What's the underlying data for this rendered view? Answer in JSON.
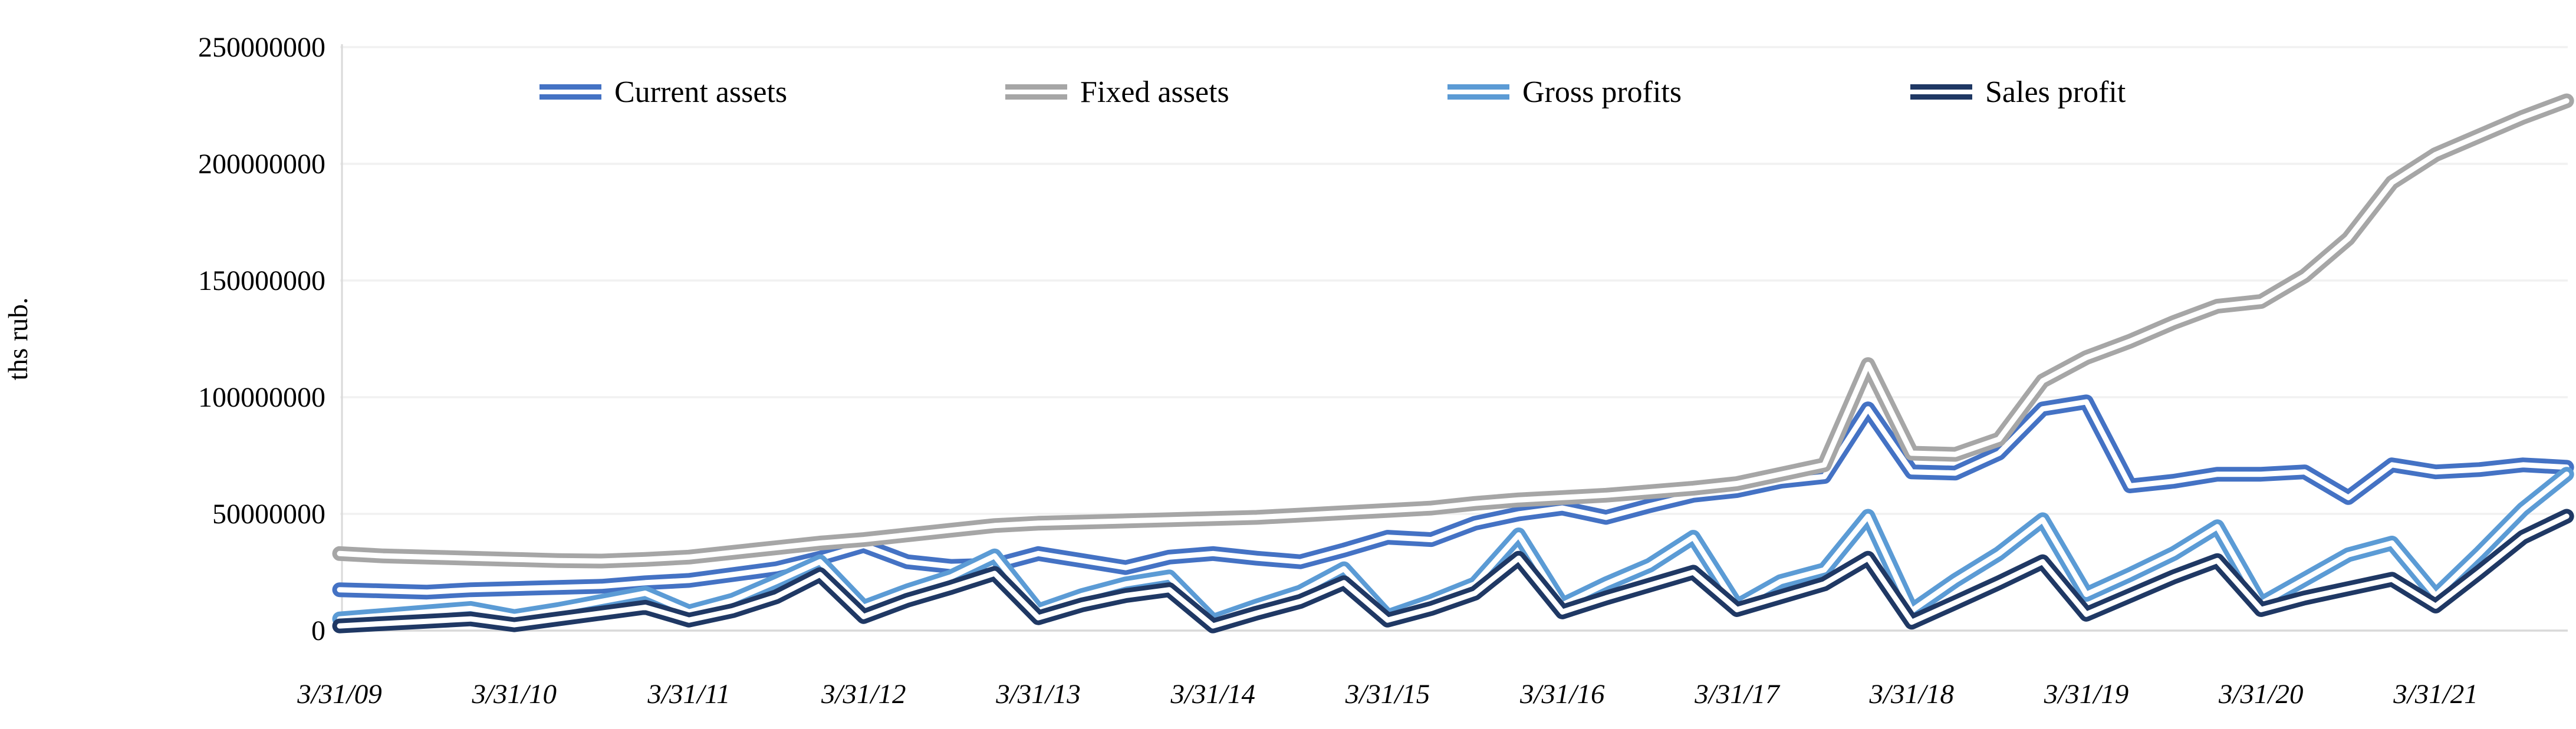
{
  "chart_data": {
    "type": "line",
    "title": "",
    "ylabel": "ths rub.",
    "xlabel": "",
    "ylim": [
      0,
      250000000
    ],
    "grid": "horizontal",
    "legend_position": "top",
    "y_ticks": [
      0,
      50000000,
      100000000,
      150000000,
      200000000,
      250000000
    ],
    "y_tick_labels": [
      "0",
      "50000000",
      "100000000",
      "150000000",
      "200000000",
      "250000000"
    ],
    "x_tick_labels": [
      "3/31/09",
      "3/31/10",
      "3/31/11",
      "3/31/12",
      "3/31/13",
      "3/31/14",
      "3/31/15",
      "3/31/16",
      "3/31/17",
      "3/31/18",
      "3/31/19",
      "3/31/20",
      "3/31/21"
    ],
    "categories": [
      "3/31/09",
      "6/30/09",
      "9/30/09",
      "12/31/09",
      "3/31/10",
      "6/30/10",
      "9/30/10",
      "12/31/10",
      "3/31/11",
      "6/30/11",
      "9/30/11",
      "12/31/11",
      "3/31/12",
      "6/30/12",
      "9/30/12",
      "12/31/12",
      "3/31/13",
      "6/30/13",
      "9/30/13",
      "12/31/13",
      "3/31/14",
      "6/30/14",
      "9/30/14",
      "12/31/14",
      "3/31/15",
      "6/30/15",
      "9/30/15",
      "12/31/15",
      "3/31/16",
      "6/30/16",
      "9/30/16",
      "12/31/16",
      "3/31/17",
      "6/30/17",
      "9/30/17",
      "12/31/17",
      "3/31/18",
      "6/30/18",
      "9/30/18",
      "12/31/18",
      "3/31/19",
      "6/30/19",
      "9/30/19",
      "12/31/19",
      "3/31/20",
      "6/30/20",
      "9/30/20",
      "12/31/20",
      "3/31/21",
      "6/30/21",
      "9/30/21",
      "12/31/21"
    ],
    "series": [
      {
        "name": "Current assets",
        "color": "#4472C4",
        "values": [
          17500000,
          17000000,
          16500000,
          17500000,
          18000000,
          18500000,
          19000000,
          20500000,
          21500000,
          24000000,
          26500000,
          31000000,
          36500000,
          29500000,
          27500000,
          28000000,
          33000000,
          30000000,
          27000000,
          31500000,
          33000000,
          31000000,
          29500000,
          34500000,
          40000000,
          39000000,
          46000000,
          50000000,
          52500000,
          48500000,
          53500000,
          58000000,
          60000000,
          64000000,
          66000000,
          95000000,
          68000000,
          67500000,
          76000000,
          95000000,
          98000000,
          62000000,
          64000000,
          67000000,
          67000000,
          68000000,
          57000000,
          71000000,
          68000000,
          69000000,
          71000000,
          70000000
        ]
      },
      {
        "name": "Fixed assets",
        "color": "#A6A6A6",
        "values": [
          33000000,
          32000000,
          31500000,
          31000000,
          30500000,
          30000000,
          29800000,
          30500000,
          31500000,
          33500000,
          35500000,
          37500000,
          39000000,
          41000000,
          43000000,
          45000000,
          46000000,
          46500000,
          47000000,
          47500000,
          48000000,
          48500000,
          49500000,
          50500000,
          51500000,
          52500000,
          54500000,
          56000000,
          57000000,
          58000000,
          59500000,
          61000000,
          63000000,
          67000000,
          71000000,
          114000000,
          76000000,
          75500000,
          82000000,
          107000000,
          117000000,
          124000000,
          132000000,
          139000000,
          141000000,
          152000000,
          168000000,
          192000000,
          204000000,
          212000000,
          220000000,
          227000000
        ]
      },
      {
        "name": "Gross profits",
        "color": "#5B9BD5",
        "values": [
          5000000,
          6500000,
          8000000,
          9500000,
          6000000,
          9000000,
          12500000,
          16000000,
          8000000,
          13000000,
          21000000,
          29500000,
          10000000,
          17000000,
          23000000,
          32000000,
          8500000,
          15000000,
          20000000,
          23000000,
          4000000,
          10500000,
          16500000,
          26500000,
          6000000,
          12500000,
          20000000,
          41000000,
          11000000,
          20000000,
          28000000,
          40000000,
          10500000,
          21000000,
          26000000,
          49000000,
          8500000,
          21500000,
          33000000,
          47500000,
          15500000,
          24000000,
          33000000,
          44500000,
          11500000,
          22000000,
          32500000,
          37500000,
          15000000,
          33000000,
          52000000,
          67000000
        ]
      },
      {
        "name": "Sales profit",
        "color": "#1F3864",
        "values": [
          2000000,
          3000000,
          4000000,
          5000000,
          2500000,
          5000000,
          7500000,
          10000000,
          4500000,
          8500000,
          14500000,
          24000000,
          6000000,
          13000000,
          18500000,
          24500000,
          5500000,
          11000000,
          15000000,
          17500000,
          2000000,
          7500000,
          12500000,
          20500000,
          4500000,
          9500000,
          16000000,
          31000000,
          8000000,
          14000000,
          19500000,
          25000000,
          9000000,
          14500000,
          20000000,
          31000000,
          3600000,
          12000000,
          20500000,
          29500000,
          7000000,
          15000000,
          23000000,
          30000000,
          9000000,
          14000000,
          18000000,
          22000000,
          10500000,
          25000000,
          40000000,
          49000000
        ]
      }
    ]
  }
}
